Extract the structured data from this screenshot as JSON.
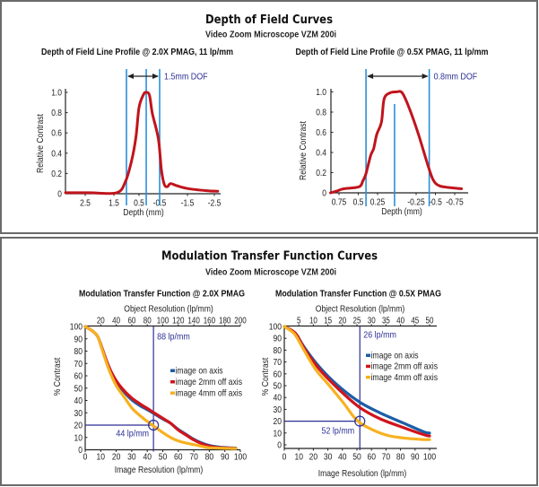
{
  "dof_section": {
    "title": "Depth of Field Curves",
    "subtitle": "Video Zoom Microscope VZM 200i"
  },
  "mtf_section": {
    "title": "Modulation Transfer Function Curves",
    "subtitle": "Video Zoom Microscope VZM 200i"
  },
  "colors": {
    "panel_border": "#6a6a6a",
    "dof_curve": "#c0141c",
    "dof_lines": "#2a90d8",
    "arrow": "#222222",
    "annotation": "#2c2f94",
    "on_axis": "#1b5ea6",
    "off_2mm": "#d0141c",
    "off_4mm": "#f7b120",
    "axis": "#222222"
  },
  "chart_data": [
    {
      "id": "dof-2x",
      "type": "line",
      "title": "Depth of Field Line Profile @ 2.0X PMAG, 11 lp/mm",
      "xlabel": "Depth (mm)",
      "ylabel": "Relative Contrast",
      "xlim": [
        3.2,
        -2.7
      ],
      "ylim": [
        0,
        1.0
      ],
      "grid": false,
      "xticks": [
        2.5,
        1.5,
        0.5,
        -0.5,
        -1.5,
        -2.5
      ],
      "xtick_labels": [
        "2.5",
        "1.5",
        "0.5",
        "-0.5",
        "-1.5",
        "-2.5"
      ],
      "yticks": [
        0,
        0.2,
        0.4,
        0.6,
        0.8,
        1.0
      ],
      "ytick_labels": [
        "0",
        "0.2",
        "0.4",
        "0.6",
        "0.8",
        "1.0"
      ],
      "series": [
        {
          "name": "Relative contrast",
          "color_key": "dof_curve",
          "x": [
            3.2,
            2.34,
            1.39,
            1.04,
            0.8,
            0.62,
            0.5,
            0.28,
            0.14,
            -0.01,
            -0.15,
            -0.44,
            -0.56,
            -0.67,
            -0.78,
            -0.89,
            -1.11,
            -1.53,
            -2.2,
            -2.61
          ],
          "y": [
            0.01,
            0.01,
            0.01,
            0.12,
            0.32,
            0.56,
            0.85,
            0.98,
            1.0,
            0.97,
            0.79,
            0.54,
            0.24,
            0.09,
            0.07,
            0.1,
            0.08,
            0.05,
            0.03,
            0.025
          ]
        }
      ],
      "dof": {
        "near": 1.0,
        "far": -0.5,
        "focus": 0.15,
        "label": "1.5mm DOF"
      }
    },
    {
      "id": "dof-05x",
      "type": "line",
      "title": "Depth of Field Line Profile @ 0.5X PMAG, 11 lp/mm",
      "xlabel": "Depth (mm)",
      "ylabel": "Relative Contrast",
      "xlim": [
        0.86,
        -0.92
      ],
      "ylim": [
        0,
        1.0
      ],
      "grid": false,
      "xticks": [
        0.75,
        0.5,
        0.25,
        -0.25,
        -0.5,
        -0.75
      ],
      "xtick_labels": [
        "0.75",
        "0.5",
        "0.25",
        "-0.25",
        "-0.5",
        "-0.75"
      ],
      "yticks": [
        0,
        0.2,
        0.4,
        0.6,
        0.8,
        1.0
      ],
      "ytick_labels": [
        "0",
        "0.2",
        "0.4",
        "0.6",
        "0.8",
        "1.0"
      ],
      "series": [
        {
          "name": "Relative contrast",
          "color_key": "dof_curve",
          "x": [
            0.86,
            0.77,
            0.69,
            0.49,
            0.44,
            0.4,
            0.34,
            0.3,
            0.26,
            0.2,
            0.165,
            0.09,
            0.01,
            -0.07,
            -0.165,
            -0.28,
            -0.4,
            -0.47,
            -0.55,
            -0.71,
            -0.84
          ],
          "y": [
            0.0,
            0.02,
            0.04,
            0.06,
            0.12,
            0.19,
            0.37,
            0.44,
            0.58,
            0.7,
            0.93,
            0.99,
            1.0,
            0.99,
            0.83,
            0.58,
            0.28,
            0.13,
            0.07,
            0.05,
            0.04
          ]
        }
      ],
      "dof": {
        "near": 0.4,
        "far": -0.42,
        "focus": 0.03,
        "label": "0.8mm DOF"
      }
    },
    {
      "id": "mtf-2x",
      "type": "line",
      "title": "Modulation Transfer Function @ 2.0X PMAG",
      "xlabel": "Image Resolution (lp/mm)",
      "ylabel": "% Contrast",
      "x2label": "Object Resolution (lp/mm)",
      "xlim": [
        0,
        100
      ],
      "ylim": [
        0,
        100
      ],
      "grid": false,
      "xticks": [
        0,
        10,
        20,
        30,
        40,
        50,
        60,
        70,
        80,
        90,
        100
      ],
      "yticks": [
        0,
        10,
        20,
        30,
        40,
        50,
        60,
        70,
        80,
        90,
        100
      ],
      "x2ticks": [
        20,
        40,
        60,
        80,
        100,
        120,
        140,
        160,
        180,
        200
      ],
      "x2_to_x_factor": 0.5,
      "legend_position": "right",
      "series": [
        {
          "name": "image on axis",
          "color_key": "on_axis",
          "x": [
            0,
            5,
            8,
            11,
            15,
            20,
            25,
            30,
            35,
            40,
            45,
            50,
            55,
            60,
            65,
            70,
            75,
            80,
            85,
            90,
            97
          ],
          "y": [
            100,
            96,
            92,
            82,
            68,
            55,
            47,
            40.5,
            36,
            32.5,
            28.8,
            25,
            21.5,
            16.5,
            12.5,
            8.5,
            5.5,
            3.5,
            2.4,
            1.8,
            1.4
          ]
        },
        {
          "name": "image 2mm off axis",
          "color_key": "off_2mm",
          "x": [
            0,
            5,
            8,
            11,
            15,
            20,
            25,
            30,
            35,
            40,
            45,
            50,
            55,
            60,
            65,
            70,
            75,
            80,
            85,
            90,
            97
          ],
          "y": [
            100,
            96,
            92,
            82,
            68,
            56,
            48,
            42,
            37.5,
            33.5,
            29.5,
            25.5,
            21.5,
            16,
            12,
            8,
            5,
            3,
            2,
            1.5,
            1.2
          ]
        },
        {
          "name": "image 4mm off axis",
          "color_key": "off_4mm",
          "x": [
            0,
            5,
            8,
            11,
            15,
            20,
            25,
            30,
            35,
            40,
            45,
            50,
            55,
            60,
            65,
            70,
            75,
            80,
            90,
            97
          ],
          "y": [
            100,
            96,
            92,
            81,
            66,
            52,
            43,
            34,
            28,
            23,
            18.5,
            14,
            10,
            7.2,
            5.5,
            4.2,
            2.8,
            1.7,
            1.2,
            1.0
          ]
        }
      ],
      "cutoff": {
        "image_res": 44,
        "object_res": 88,
        "contrast": 20,
        "image_label": "44 lp/mm",
        "object_label": "88 lp/mm"
      }
    },
    {
      "id": "mtf-05x",
      "type": "line",
      "title": "Modulation Transfer Function @ 0.5X PMAG",
      "xlabel": "Image Resolution (lp/mm)",
      "ylabel": "% Contrast",
      "x2label": "Object Resolution (lp/mm)",
      "xlim": [
        0,
        100
      ],
      "ylim": [
        0,
        100
      ],
      "grid": false,
      "xticks": [
        0,
        10,
        20,
        30,
        40,
        50,
        60,
        70,
        80,
        90,
        100
      ],
      "yticks": [
        0,
        10,
        20,
        30,
        40,
        50,
        60,
        70,
        80,
        90,
        100
      ],
      "x2ticks": [
        5,
        10,
        15,
        20,
        25,
        30,
        35,
        40,
        45,
        50
      ],
      "x2_to_x_factor": 2,
      "legend_position": "right",
      "series": [
        {
          "name": "image on axis",
          "color_key": "on_axis",
          "x": [
            0,
            6,
            9,
            14,
            24,
            37,
            52,
            66,
            82,
            96,
            100
          ],
          "y": [
            100,
            96,
            92,
            82,
            66,
            50,
            36,
            27,
            18.4,
            11,
            10
          ]
        },
        {
          "name": "image 2mm off axis",
          "color_key": "off_2mm",
          "x": [
            0,
            6,
            9,
            14,
            24,
            37,
            52,
            66,
            82,
            96,
            100
          ],
          "y": [
            100,
            96,
            92,
            81,
            64,
            47.5,
            31.5,
            22,
            14.6,
            8.6,
            7.5
          ]
        },
        {
          "name": "image 4mm off axis",
          "color_key": "off_4mm",
          "x": [
            0,
            6,
            9,
            14,
            22,
            31,
            41,
            49,
            57,
            70,
            82,
            96,
            100
          ],
          "y": [
            100,
            95,
            90,
            79,
            63,
            50,
            35,
            22,
            15,
            8.3,
            5.8,
            4.5,
            4.5
          ]
        }
      ],
      "cutoff": {
        "image_res": 52,
        "object_res": 26,
        "contrast": 20,
        "image_label": "52 lp/mm",
        "object_label": "26 lp/mm"
      }
    }
  ]
}
